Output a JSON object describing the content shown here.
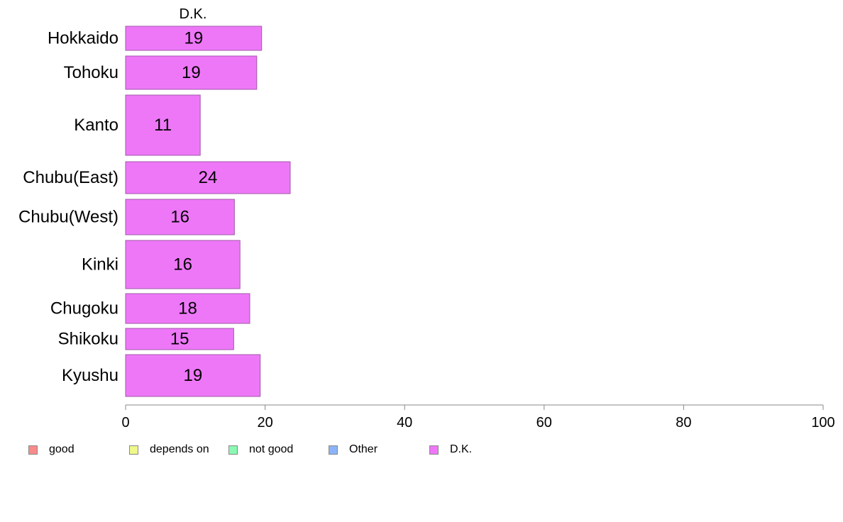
{
  "chart_data": {
    "type": "bar",
    "orientation": "horizontal",
    "series_title": "D.K.",
    "categories": [
      "Hokkaido",
      "Tohoku",
      "Kanto",
      "Chubu(East)",
      "Chubu(West)",
      "Kinki",
      "Chugoku",
      "Shikoku",
      "Kyushu"
    ],
    "values": [
      19.5,
      18.8,
      10.7,
      23.6,
      15.6,
      16.4,
      17.8,
      15.5,
      19.3
    ],
    "data_labels": [
      "19",
      "19",
      "11",
      "24",
      "16",
      "16",
      "18",
      "15",
      "19"
    ],
    "xlim": [
      0,
      100
    ],
    "xticks": [
      "0",
      "20",
      "40",
      "60",
      "80",
      "100"
    ],
    "bar_color": "#ee77f8",
    "bar_edge_color": "#a05aa8",
    "axis_color": "#888888",
    "grid": false,
    "legend_position": "bottom",
    "legend": [
      {
        "label": "good",
        "color": "#f98b8b"
      },
      {
        "label": "depends on",
        "color": "#eef88b"
      },
      {
        "label": "not good",
        "color": "#8bf8b4"
      },
      {
        "label": "Other",
        "color": "#8bb4f8"
      },
      {
        "label": "D.K.",
        "color": "#ee77f8"
      }
    ]
  }
}
